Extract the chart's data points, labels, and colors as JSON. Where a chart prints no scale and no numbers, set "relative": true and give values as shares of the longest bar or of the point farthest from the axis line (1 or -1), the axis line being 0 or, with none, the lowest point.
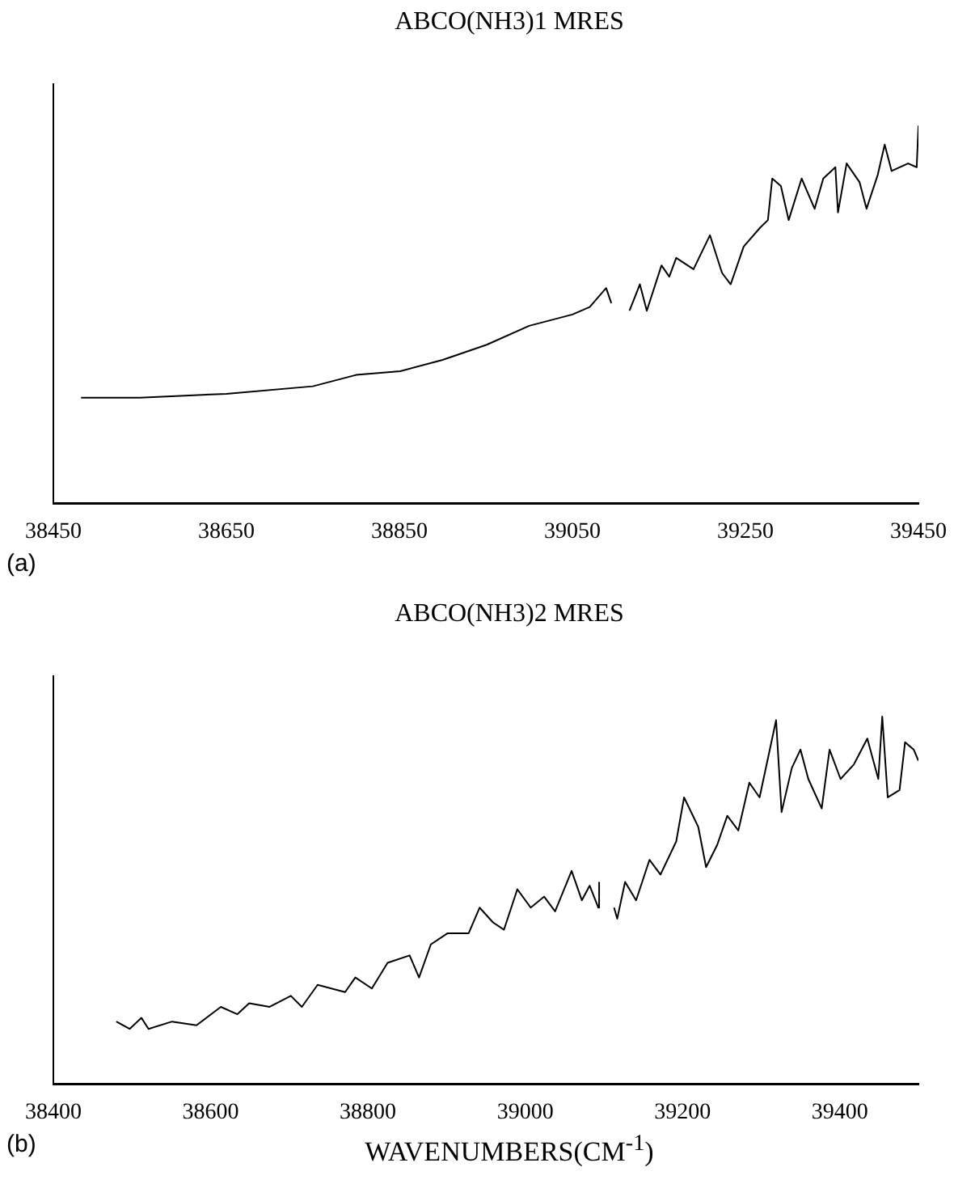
{
  "chart_data": [
    {
      "type": "line",
      "title": "ABCO(NH3)1 MRES",
      "annotations": [
        "(a)"
      ],
      "relative": true,
      "xlim": [
        38450,
        39450
      ],
      "xticks": [
        38450,
        38650,
        38850,
        39050,
        39250,
        39450
      ],
      "series": [
        {
          "color": "#000000",
          "x": [
            38482,
            38550,
            38650,
            38750,
            38800,
            38851,
            38900,
            38951,
            39000,
            39050,
            39070,
            39089,
            39095,
            39105,
            39116,
            39128,
            39136,
            39153,
            39162,
            39170,
            39190,
            39209,
            39223,
            39233,
            39248,
            39267,
            39276,
            39281,
            39291,
            39300,
            39315,
            39330,
            39340,
            39354,
            39357,
            39367,
            39382,
            39390,
            39403,
            39411,
            39419,
            39438,
            39448,
            39450
          ],
          "values": [
            0.28,
            0.28,
            0.29,
            0.31,
            0.34,
            0.35,
            0.38,
            0.42,
            0.47,
            0.5,
            0.52,
            0.57,
            0.53,
            null,
            0.51,
            0.58,
            0.51,
            0.63,
            0.6,
            0.65,
            0.62,
            0.71,
            0.61,
            0.58,
            0.68,
            0.73,
            0.75,
            0.86,
            0.84,
            0.75,
            0.86,
            0.78,
            0.86,
            0.89,
            0.77,
            0.9,
            0.85,
            0.78,
            0.87,
            0.95,
            0.88,
            0.9,
            0.89,
            1.0
          ]
        }
      ]
    },
    {
      "type": "line",
      "title": "ABCO(NH3)2 MRES",
      "xlabel": "WAVENUMBERS(CM$^{-1}$)",
      "annotations": [
        "(b)"
      ],
      "relative": true,
      "xlim": [
        38400,
        39500
      ],
      "xticks": [
        38400,
        38600,
        38800,
        39000,
        39200,
        39400
      ],
      "series": [
        {
          "color": "#000000",
          "x": [
            38480,
            38497,
            38512,
            38521,
            38551,
            38582,
            38613,
            38634,
            38649,
            38675,
            38702,
            38716,
            38736,
            38771,
            38784,
            38805,
            38825,
            38853,
            38865,
            38880,
            38901,
            38928,
            38942,
            38959,
            38973,
            38990,
            39007,
            39024,
            39038,
            39059,
            39072,
            39082,
            39093,
            39094,
            39104,
            39113,
            39117,
            39127,
            39141,
            39158,
            39172,
            39192,
            39202,
            39220,
            39230,
            39244,
            39257,
            39271,
            39285,
            39298,
            39309,
            39319,
            39326,
            39339,
            39350,
            39360,
            39377,
            39387,
            39401,
            39418,
            39435,
            39449,
            39454,
            39461,
            39476,
            39483,
            39494,
            39500
          ],
          "values": [
            0.17,
            0.15,
            0.18,
            0.15,
            0.17,
            0.16,
            0.21,
            0.19,
            0.22,
            0.21,
            0.24,
            0.21,
            0.27,
            0.25,
            0.29,
            0.26,
            0.33,
            0.35,
            0.29,
            0.38,
            0.41,
            0.41,
            0.48,
            0.44,
            0.42,
            0.53,
            0.48,
            0.51,
            0.47,
            0.58,
            0.5,
            0.54,
            0.48,
            0.55,
            null,
            0.48,
            0.45,
            0.55,
            0.5,
            0.61,
            0.57,
            0.66,
            0.78,
            0.7,
            0.59,
            0.65,
            0.73,
            0.69,
            0.82,
            0.78,
            0.89,
            0.99,
            0.74,
            0.86,
            0.91,
            0.83,
            0.75,
            0.91,
            0.83,
            0.87,
            0.94,
            0.83,
            1.0,
            0.78,
            0.8,
            0.93,
            0.91,
            0.88
          ]
        }
      ]
    }
  ]
}
